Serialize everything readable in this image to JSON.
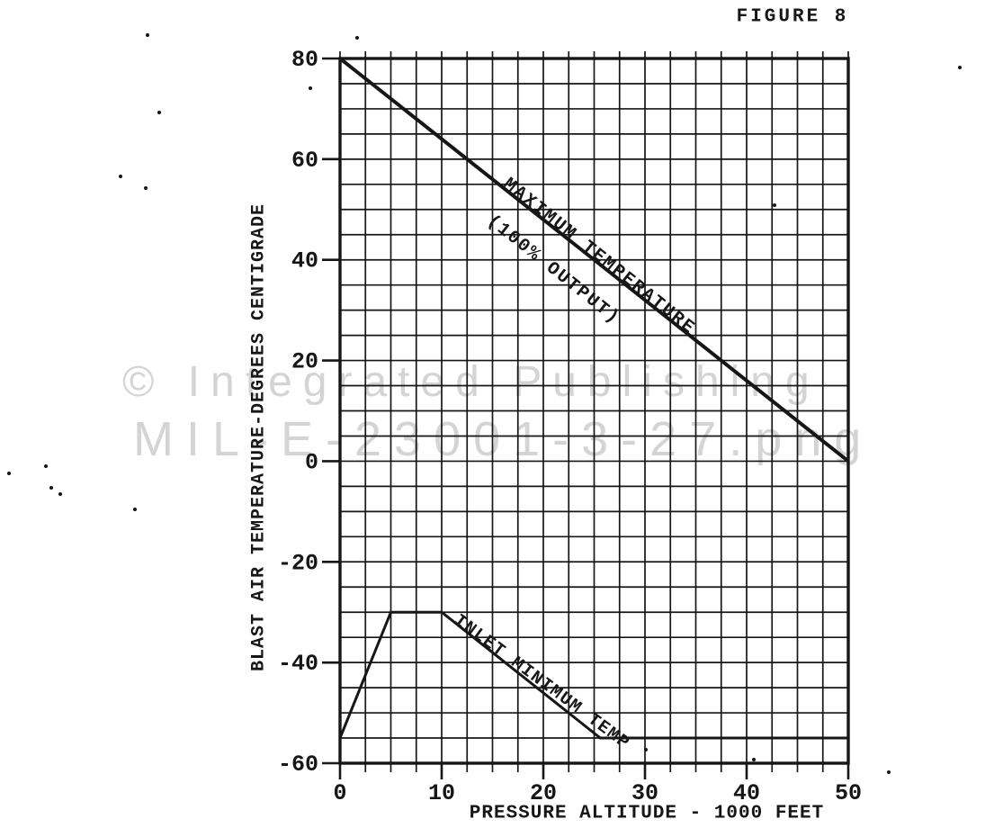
{
  "page": {
    "background": "#ffffff",
    "ink_color": "#161616",
    "watermark_color": "#d4d4d4"
  },
  "watermark": {
    "line1": "© Integrated Publishing",
    "line2": "MIL-E-23001-3-27.png"
  },
  "chart_data": {
    "type": "line",
    "title": "FIGURE 8",
    "xlabel": "PRESSURE ALTITUDE - 1000 FEET",
    "ylabel": "BLAST AIR TEMPERATURE-DEGREES CENTIGRADE",
    "xlim": [
      0,
      50
    ],
    "ylim": [
      -60,
      80
    ],
    "x_ticks": [
      0,
      10,
      20,
      30,
      40,
      50
    ],
    "y_ticks": [
      80,
      60,
      40,
      20,
      0,
      -20,
      -40,
      -60
    ],
    "grid": {
      "on": true,
      "x_minor_step": 2.5,
      "y_minor_step": 5
    },
    "legend_position": "labels-on-lines",
    "series": [
      {
        "name": "maximum-temperature",
        "label_line1": "MAXIMUM TEMPERATURE",
        "label_line2": "(100% OUTPUT)",
        "points": [
          [
            0,
            80
          ],
          [
            50,
            0
          ]
        ]
      },
      {
        "name": "inlet-minimum-temp",
        "label_line1": "INLET MINIMUM TEMP",
        "label_line2": "",
        "points": [
          [
            0,
            -55
          ],
          [
            5,
            -30
          ],
          [
            10,
            -30
          ],
          [
            25.6,
            -55
          ],
          [
            50,
            -55
          ]
        ]
      }
    ]
  }
}
